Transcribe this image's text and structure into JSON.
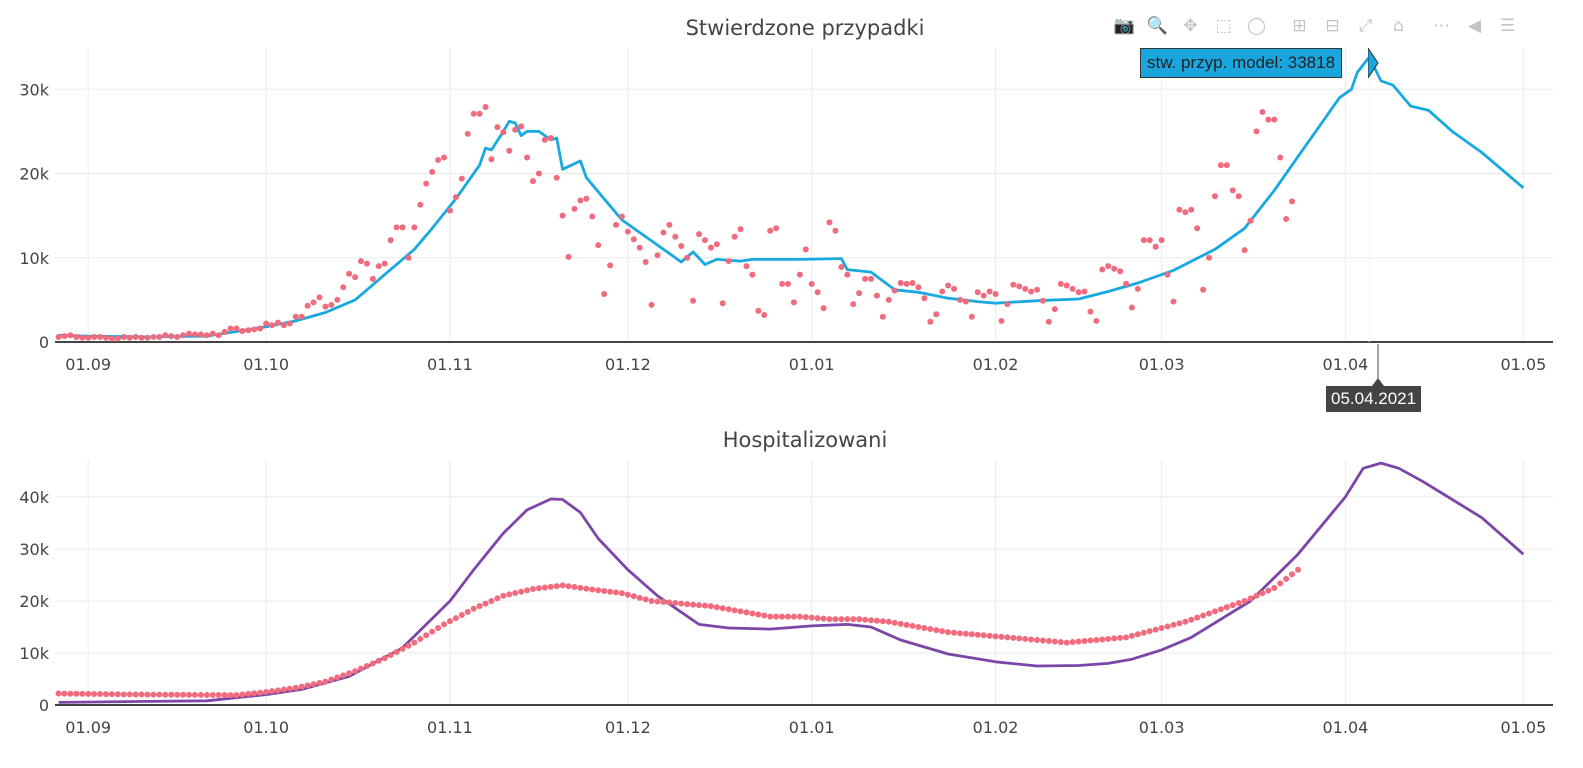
{
  "chart_data": [
    {
      "type": "line+scatter",
      "title": "Stwierdzone przypadki",
      "x_unit": "days since 01.09.2020",
      "xlim": [
        -5.6,
        247
      ],
      "ylim": [
        0,
        34.9
      ],
      "y_unit": "thousands",
      "yticks": [
        {
          "v": 0,
          "label": "0"
        },
        {
          "v": 10,
          "label": "10k"
        },
        {
          "v": 20,
          "label": "20k"
        },
        {
          "v": 30,
          "label": "30k"
        }
      ],
      "series": [
        {
          "name": "stw. przyp. model",
          "kind": "line",
          "color": "#17a9df",
          "points": [
            [
              -5,
              0.8
            ],
            [
              0,
              0.7
            ],
            [
              10,
              0.6
            ],
            [
              20,
              0.7
            ],
            [
              30,
              1.8
            ],
            [
              35,
              2.5
            ],
            [
              40,
              3.5
            ],
            [
              45,
              5
            ],
            [
              50,
              8
            ],
            [
              55,
              11
            ],
            [
              58,
              13.5
            ],
            [
              62,
              17
            ],
            [
              66,
              21
            ],
            [
              67,
              23
            ],
            [
              68,
              22.8
            ],
            [
              70,
              25
            ],
            [
              71,
              26.2
            ],
            [
              72,
              26
            ],
            [
              73,
              24.5
            ],
            [
              74,
              25
            ],
            [
              76,
              25
            ],
            [
              77,
              24.5
            ],
            [
              78,
              24
            ],
            [
              79,
              24.2
            ],
            [
              80,
              20.5
            ],
            [
              83,
              21.5
            ],
            [
              84,
              19.5
            ],
            [
              87,
              17
            ],
            [
              90,
              14.5
            ],
            [
              95,
              12
            ],
            [
              98,
              10.5
            ],
            [
              100,
              9.5
            ],
            [
              102,
              10.7
            ],
            [
              104,
              9.2
            ],
            [
              106,
              9.8
            ],
            [
              110,
              9.6
            ],
            [
              112,
              9.8
            ],
            [
              120,
              9.8
            ],
            [
              127,
              9.9
            ],
            [
              128,
              8.6
            ],
            [
              132,
              8.3
            ],
            [
              136,
              6.2
            ],
            [
              140,
              5.9
            ],
            [
              145,
              5.2
            ],
            [
              150,
              4.8
            ],
            [
              153,
              4.6
            ],
            [
              160,
              4.9
            ],
            [
              167,
              5.1
            ],
            [
              172,
              6
            ],
            [
              177,
              7
            ],
            [
              183,
              8.5
            ],
            [
              190,
              11
            ],
            [
              195,
              13.5
            ],
            [
              200,
              18
            ],
            [
              205,
              23
            ],
            [
              208,
              26
            ],
            [
              211,
              29
            ],
            [
              213,
              30
            ],
            [
              214,
              32
            ],
            [
              216,
              33.818
            ],
            [
              218,
              31
            ],
            [
              220,
              30.5
            ],
            [
              223,
              28
            ],
            [
              226,
              27.5
            ],
            [
              230,
              25
            ],
            [
              235,
              22.5
            ],
            [
              242,
              18.3
            ]
          ]
        },
        {
          "name": "stw. przyp.",
          "kind": "dots",
          "color": "#ef6b7d",
          "start_day": -5,
          "values": [
            0.6,
            0.7,
            0.8,
            0.6,
            0.5,
            0.5,
            0.6,
            0.6,
            0.5,
            0.4,
            0.4,
            0.6,
            0.5,
            0.6,
            0.5,
            0.5,
            0.6,
            0.6,
            0.8,
            0.7,
            0.6,
            0.8,
            1.0,
            0.9,
            0.9,
            0.8,
            1.0,
            0.8,
            1.2,
            1.6,
            1.6,
            1.3,
            1.4,
            1.5,
            1.6,
            2.2,
            2.0,
            2.3,
            2.0,
            2.2,
            3.0,
            3.0,
            4.3,
            4.7,
            5.3,
            4.2,
            4.4,
            5.0,
            6.5,
            8.1,
            7.7,
            9.6,
            9.3,
            7.5,
            9.0,
            9.3,
            12.1,
            13.6,
            13.6,
            10.0,
            13.6,
            16.3,
            18.8,
            20.2,
            21.6,
            21.9,
            15.6,
            17.2,
            19.4,
            24.7,
            27.1,
            27.1,
            27.9,
            21.7,
            25.5,
            24.9,
            22.7,
            25.2,
            25.6,
            21.9,
            19.1,
            20.0,
            24.0,
            24.2,
            19.5,
            15.0,
            10.1,
            15.8,
            16.8,
            17.0,
            14.9,
            11.5,
            5.7,
            9.1,
            13.9,
            14.9,
            13.1,
            12.2,
            11.2,
            9.5,
            4.4,
            10.3,
            13.0,
            13.9,
            12.5,
            11.4,
            10.0,
            4.9,
            12.8,
            12.1,
            11.2,
            11.6,
            4.6,
            9.6,
            12.5,
            13.4,
            9.0,
            8.0,
            3.7,
            3.2,
            13.2,
            13.5,
            6.9,
            6.9,
            4.7,
            8.0,
            11.0,
            6.9,
            5.9,
            4.0,
            14.2,
            13.2,
            8.9,
            8.0,
            4.5,
            5.8,
            7.5,
            7.5,
            5.5,
            3.0,
            5.0,
            6.1,
            7.0,
            6.9,
            7.0,
            6.5,
            5.2,
            2.4,
            3.3,
            6.0,
            6.7,
            6.3,
            5.0,
            4.8,
            3.0,
            5.9,
            5.5,
            6.0,
            5.7,
            2.5,
            4.5,
            6.8,
            6.6,
            6.3,
            6.0,
            6.2,
            4.9,
            2.4,
            3.9,
            6.9,
            6.7,
            6.3,
            5.9,
            6.0,
            3.6,
            2.5,
            8.6,
            9.0,
            8.7,
            8.4,
            6.9,
            4.1,
            6.3,
            12.1,
            12.1,
            11.3,
            12.1,
            8.0,
            4.8,
            15.7,
            15.4,
            15.7,
            13.5,
            6.2,
            10.0,
            17.3,
            21.0,
            21.0,
            18.0,
            17.3,
            10.9,
            14.4,
            25.0,
            27.3,
            26.4,
            26.4,
            21.9,
            14.6,
            16.7
          ]
        }
      ]
    },
    {
      "type": "line+scatter",
      "title": "Hospitalizowani",
      "x_unit": "days since 01.09.2020",
      "xlim": [
        -5.6,
        247
      ],
      "ylim": [
        0,
        47.1
      ],
      "y_unit": "thousands",
      "yticks": [
        {
          "v": 0,
          "label": "0"
        },
        {
          "v": 10,
          "label": "10k"
        },
        {
          "v": 20,
          "label": "20k"
        },
        {
          "v": 30,
          "label": "30k"
        },
        {
          "v": 40,
          "label": "40k"
        }
      ],
      "series": [
        {
          "name": "hosp. model",
          "kind": "line",
          "color": "#7b46a8",
          "points": [
            [
              -5,
              0.5
            ],
            [
              10,
              0.7
            ],
            [
              20,
              0.8
            ],
            [
              30,
              2
            ],
            [
              36,
              3
            ],
            [
              44,
              5.5
            ],
            [
              53,
              11
            ],
            [
              61,
              20
            ],
            [
              65,
              26
            ],
            [
              70,
              33
            ],
            [
              74,
              37.5
            ],
            [
              78,
              39.6
            ],
            [
              80,
              39.5
            ],
            [
              83,
              37
            ],
            [
              86,
              32
            ],
            [
              91,
              26
            ],
            [
              96,
              21
            ],
            [
              103,
              15.5
            ],
            [
              108,
              14.8
            ],
            [
              115,
              14.6
            ],
            [
              122,
              15.2
            ],
            [
              128,
              15.5
            ],
            [
              132,
              15
            ],
            [
              137,
              12.5
            ],
            [
              145,
              9.8
            ],
            [
              153,
              8.3
            ],
            [
              160,
              7.5
            ],
            [
              167,
              7.6
            ],
            [
              172,
              8
            ],
            [
              176,
              8.8
            ],
            [
              181,
              10.6
            ],
            [
              186,
              13
            ],
            [
              191,
              16.5
            ],
            [
              196,
              20
            ],
            [
              204,
              29
            ],
            [
              212,
              40
            ],
            [
              215,
              45.5
            ],
            [
              218,
              46.5
            ],
            [
              221,
              45.5
            ],
            [
              225,
              43
            ],
            [
              230,
              39.5
            ],
            [
              235,
              36
            ],
            [
              242,
              29
            ]
          ]
        },
        {
          "name": "hospitalizowani",
          "kind": "dots",
          "color": "#ef6b7d",
          "step_days": 1,
          "start_day": -5,
          "end_day": 204,
          "anchors": [
            [
              -5,
              2.2
            ],
            [
              10,
              2.0
            ],
            [
              25,
              1.9
            ],
            [
              30,
              2.5
            ],
            [
              35,
              3.3
            ],
            [
              40,
              4.5
            ],
            [
              45,
              6.5
            ],
            [
              50,
              9
            ],
            [
              55,
              12
            ],
            [
              60,
              15.5
            ],
            [
              65,
              18.5
            ],
            [
              70,
              21
            ],
            [
              75,
              22.3
            ],
            [
              80,
              23
            ],
            [
              85,
              22.2
            ],
            [
              90,
              21.5
            ],
            [
              95,
              20
            ],
            [
              100,
              19.5
            ],
            [
              105,
              19
            ],
            [
              110,
              18
            ],
            [
              115,
              17
            ],
            [
              120,
              17
            ],
            [
              125,
              16.5
            ],
            [
              130,
              16.5
            ],
            [
              135,
              16
            ],
            [
              140,
              15
            ],
            [
              145,
              14
            ],
            [
              150,
              13.5
            ],
            [
              155,
              13
            ],
            [
              160,
              12.5
            ],
            [
              165,
              12
            ],
            [
              170,
              12.5
            ],
            [
              175,
              13
            ],
            [
              180,
              14.5
            ],
            [
              185,
              16
            ],
            [
              190,
              18
            ],
            [
              195,
              20
            ],
            [
              200,
              22.5
            ],
            [
              204,
              26
            ]
          ]
        }
      ]
    }
  ],
  "xticks": [
    {
      "v": 0,
      "label": "01.09"
    },
    {
      "v": 30,
      "label": "01.10"
    },
    {
      "v": 61,
      "label": "01.11"
    },
    {
      "v": 91,
      "label": "01.12"
    },
    {
      "v": 122,
      "label": "01.01"
    },
    {
      "v": 153,
      "label": "01.02"
    },
    {
      "v": 181,
      "label": "01.03"
    },
    {
      "v": 212,
      "label": "01.04"
    },
    {
      "v": 242,
      "label": "01.05"
    }
  ],
  "hover": {
    "label": "stw. przyp. model: 33818",
    "day": 216,
    "value": 33.818,
    "date": "05.04.2021"
  },
  "modebar": [
    {
      "icon": "camera-icon",
      "glyph": "📷"
    },
    {
      "icon": "zoom-icon",
      "glyph": "🔍",
      "active": true
    },
    {
      "icon": "pan-icon",
      "glyph": "✥"
    },
    {
      "icon": "box-select-icon",
      "glyph": "⬚"
    },
    {
      "icon": "lasso-select-icon",
      "glyph": "◯"
    },
    {
      "icon": "zoom-in-icon",
      "glyph": "⊞"
    },
    {
      "icon": "zoom-out-icon",
      "glyph": "⊟"
    },
    {
      "icon": "autoscale-icon",
      "glyph": "⤢"
    },
    {
      "icon": "reset-axes-icon",
      "glyph": "⌂"
    },
    {
      "icon": "spike-lines-icon",
      "glyph": "⋯"
    },
    {
      "icon": "hover-closest-icon",
      "glyph": "◀"
    },
    {
      "icon": "hover-compare-icon",
      "glyph": "☰"
    }
  ]
}
